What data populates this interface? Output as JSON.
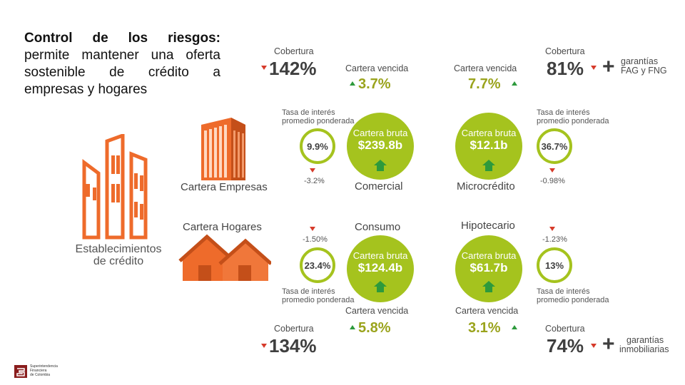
{
  "intro": {
    "title": "Control de los riesgos:",
    "body": "permite mantener una oferta sostenible de crédito a empresas y hogares"
  },
  "left_graphics": {
    "institutions_label_1": "Establecimientos",
    "institutions_label_2": "de crédito",
    "empresas_label": "Cartera Empresas",
    "hogares_label": "Cartera Hogares"
  },
  "labels": {
    "cobertura": "Cobertura",
    "cartera_vencida": "Cartera vencida",
    "cartera_bruta": "Cartera bruta",
    "tasa_1": "Tasa de interés",
    "tasa_2": "promedio ponderada"
  },
  "commercial": {
    "segment": "Comercial",
    "coverage": "142%",
    "npl": "3.7%",
    "gross_portfolio": "$239.8b",
    "rate": "9.9%",
    "rate_change": "-3.2%"
  },
  "microcredit": {
    "segment": "Microcrédito",
    "coverage": "81%",
    "guarantee_1": "garantías",
    "guarantee_2": "FAG y FNG",
    "npl": "7.7%",
    "gross_portfolio": "$12.1b",
    "rate": "36.7%",
    "rate_change": "-0.98%"
  },
  "consumer": {
    "segment": "Consumo",
    "coverage": "134%",
    "npl": "5.8%",
    "gross_portfolio": "$124.4b",
    "rate": "23.4%",
    "rate_change": "-1.50%"
  },
  "mortgage": {
    "segment": "Hipotecario",
    "coverage": "74%",
    "guarantee_1": "garantías",
    "guarantee_2": "inmobiliarias",
    "npl": "3.1%",
    "gross_portfolio": "$61.7b",
    "rate": "13%",
    "rate_change": "-1.23%"
  },
  "logo": {
    "line1": "Superintendencia",
    "line2": "Financiera",
    "line3": "de Colombia"
  },
  "colors": {
    "green": "#a5c31e",
    "orange": "#ee6b2b",
    "up_arrow": "#2d9a3c",
    "down_arrow": "#d63a2a"
  }
}
